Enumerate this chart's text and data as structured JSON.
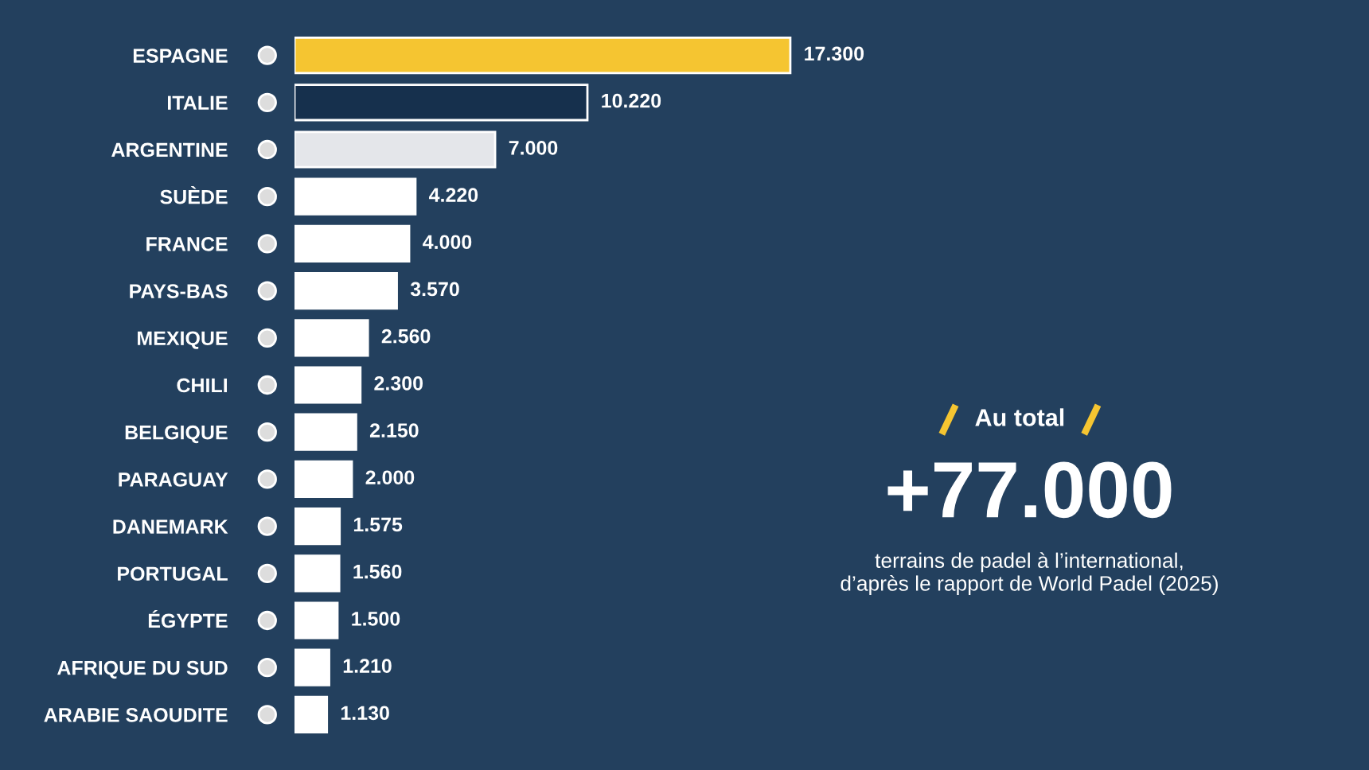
{
  "chart_data": {
    "type": "bar",
    "orientation": "horizontal",
    "categories": [
      "ESPAGNE",
      "ITALIE",
      "ARGENTINE",
      "SUÈDE",
      "FRANCE",
      "PAYS-BAS",
      "MEXIQUE",
      "CHILI",
      "BELGIQUE",
      "PARAGUAY",
      "DANEMARK",
      "PORTUGAL",
      "ÉGYPTE",
      "AFRIQUE DU SUD",
      "ARABIE SAOUDITE"
    ],
    "values": [
      17300,
      10220,
      7000,
      4220,
      4000,
      3570,
      2560,
      2300,
      2150,
      2000,
      1575,
      1560,
      1500,
      1210,
      1130
    ],
    "colors": [
      "#f5c531",
      "#16304d",
      "#e4e6ea",
      "#ffffff",
      "#ffffff",
      "#ffffff",
      "#ffffff",
      "#ffffff",
      "#ffffff",
      "#ffffff",
      "#ffffff",
      "#ffffff",
      "#ffffff",
      "#ffffff",
      "#ffffff"
    ],
    "value_labels": [
      "17.300",
      "10.220",
      "7.000",
      "4.220",
      "4.000",
      "3.570",
      "2.560",
      "2.300",
      "2.150",
      "2.000",
      "1.575",
      "1.560",
      "1.500",
      "1.210",
      "1.130"
    ],
    "annotations": [
      "Au total",
      "+77.000",
      "terrains de padel à l’international,\nd’après le rapport de World Padel (2025)"
    ]
  }
}
